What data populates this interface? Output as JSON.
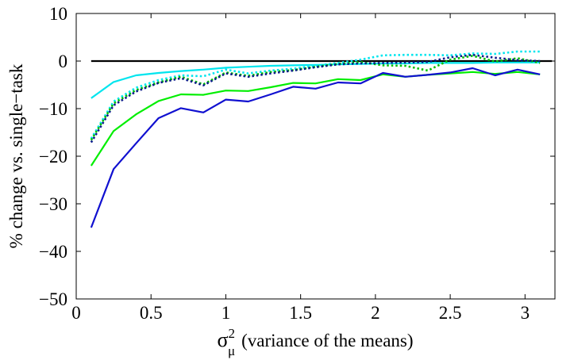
{
  "chart_data": {
    "type": "line",
    "title": "",
    "xlabel": {
      "symbol": "σ",
      "superscript": "2",
      "subscript": "μ",
      "text": "(variance of the means)"
    },
    "ylabel": "% change vs. single−task",
    "xlim": [
      0,
      3.2
    ],
    "ylim": [
      -50,
      10
    ],
    "xticks": [
      0,
      0.5,
      1,
      1.5,
      2,
      2.5,
      3
    ],
    "xtick_labels": [
      "0",
      "0.5",
      "1",
      "1.5",
      "2",
      "2.5",
      "3"
    ],
    "yticks": [
      -50,
      -40,
      -30,
      -20,
      -10,
      0,
      10
    ],
    "ytick_labels": [
      "−50",
      "−40",
      "−30",
      "−20",
      "−10",
      "0",
      "10"
    ],
    "grid": false,
    "legend": "none",
    "x": [
      0.1,
      0.25,
      0.4,
      0.55,
      0.7,
      0.85,
      1.0,
      1.15,
      1.3,
      1.45,
      1.6,
      1.75,
      1.9,
      2.05,
      2.2,
      2.35,
      2.5,
      2.65,
      2.8,
      2.95,
      3.1
    ],
    "series": [
      {
        "name": "baseline",
        "color": "#000000",
        "style": "solid",
        "values": [
          0,
          0,
          0,
          0,
          0,
          0,
          0,
          0,
          0,
          0,
          0,
          0,
          0,
          0,
          0,
          0,
          0,
          0,
          0,
          0,
          0
        ]
      },
      {
        "name": "cyan solid",
        "color": "#00e5ee",
        "style": "solid",
        "values": [
          -7.8,
          -4.4,
          -3.0,
          -2.5,
          -2.1,
          -1.8,
          -1.4,
          -1.2,
          -1.0,
          -0.9,
          -0.8,
          -0.7,
          -0.6,
          -0.5,
          -0.5,
          -0.4,
          -0.4,
          -0.4,
          -0.3,
          -0.3,
          -0.3
        ]
      },
      {
        "name": "cyan dotted",
        "color": "#00e5ee",
        "style": "dotted",
        "values": [
          -16.3,
          -8.5,
          -5.6,
          -4.0,
          -3.0,
          -3.2,
          -1.8,
          -2.6,
          -2.0,
          -1.6,
          -1.0,
          -0.4,
          0.3,
          1.2,
          1.3,
          1.3,
          1.2,
          1.6,
          1.5,
          2.0,
          2.0
        ]
      },
      {
        "name": "green dotted",
        "color": "#00c000",
        "style": "dotted",
        "values": [
          -16.6,
          -8.9,
          -6.1,
          -4.5,
          -3.3,
          -4.9,
          -2.4,
          -3.1,
          -2.3,
          -1.9,
          -1.2,
          -0.6,
          -0.2,
          -0.9,
          -1.0,
          -2.0,
          0.3,
          1.1,
          -0.1,
          0.6,
          -0.4
        ]
      },
      {
        "name": "blue dotted",
        "color": "#0a1a8a",
        "style": "dotted",
        "values": [
          -17.1,
          -9.3,
          -6.4,
          -4.6,
          -3.6,
          -5.1,
          -2.6,
          -3.3,
          -2.6,
          -2.0,
          -1.3,
          -0.7,
          -0.5,
          -0.4,
          -0.3,
          -0.2,
          0.8,
          1.3,
          0.7,
          0.2,
          0.0
        ]
      },
      {
        "name": "green solid",
        "color": "#00ee00",
        "style": "solid",
        "values": [
          -22.0,
          -14.7,
          -11.2,
          -8.4,
          -7.0,
          -7.1,
          -6.2,
          -6.3,
          -5.5,
          -4.6,
          -4.7,
          -3.8,
          -4.0,
          -2.8,
          -3.3,
          -2.9,
          -2.6,
          -2.3,
          -2.7,
          -2.3,
          -2.8
        ]
      },
      {
        "name": "blue solid",
        "color": "#1010d0",
        "style": "solid",
        "values": [
          -35.0,
          -22.7,
          -17.3,
          -12.0,
          -9.9,
          -10.8,
          -8.1,
          -8.5,
          -7.0,
          -5.4,
          -5.8,
          -4.5,
          -4.7,
          -2.5,
          -3.3,
          -2.9,
          -2.4,
          -1.5,
          -3.0,
          -1.8,
          -2.8
        ]
      }
    ]
  }
}
